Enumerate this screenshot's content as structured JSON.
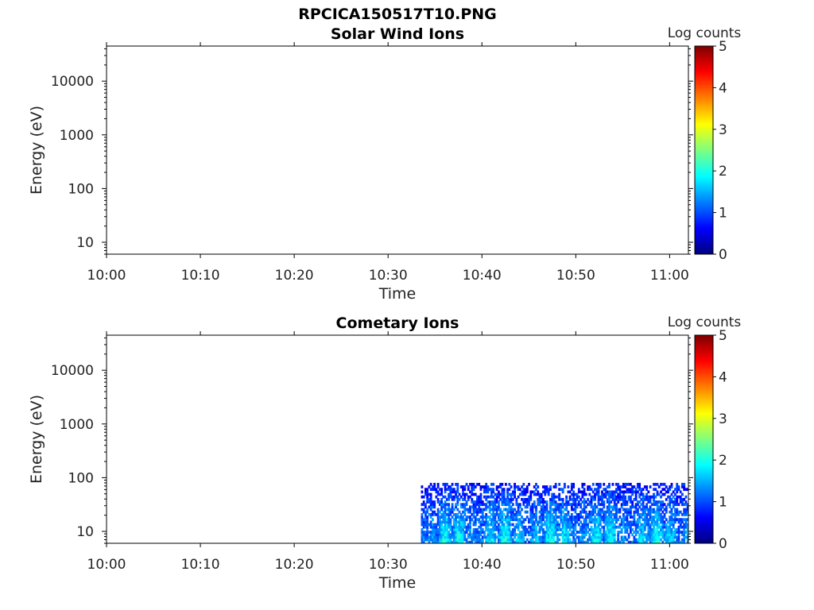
{
  "figure_title": "RPCICA150517T10.PNG",
  "colors": {
    "colormap": [
      "#00007f",
      "#0000ff",
      "#007fff",
      "#00ffff",
      "#7fff7f",
      "#ffff00",
      "#ff7f00",
      "#ff0000",
      "#7f0000"
    ]
  },
  "chart_data": [
    {
      "type": "heatmap",
      "title": "Solar Wind Ions",
      "xlabel": "Time",
      "ylabel": "Energy (eV)",
      "x_ticks": [
        "10:00",
        "10:10",
        "10:20",
        "10:30",
        "10:40",
        "10:50",
        "11:00"
      ],
      "y_ticks": [
        "10",
        "100",
        "1000",
        "10000"
      ],
      "y_scale": "log",
      "ylim": [
        6,
        45000
      ],
      "xlim": [
        "10:00",
        "11:02"
      ],
      "colorbar": {
        "label": "Log counts",
        "ticks": [
          "0",
          "1",
          "2",
          "3",
          "4",
          "5"
        ],
        "range": [
          0,
          5
        ]
      },
      "data_extent": null
    },
    {
      "type": "heatmap",
      "title": "Cometary Ions",
      "xlabel": "Time",
      "ylabel": "Energy (eV)",
      "x_ticks": [
        "10:00",
        "10:10",
        "10:20",
        "10:30",
        "10:40",
        "10:50",
        "11:00"
      ],
      "y_ticks": [
        "10",
        "100",
        "1000",
        "10000"
      ],
      "y_scale": "log",
      "ylim": [
        6,
        45000
      ],
      "xlim": [
        "10:00",
        "11:02"
      ],
      "colorbar": {
        "label": "Log counts",
        "ticks": [
          "0",
          "1",
          "2",
          "3",
          "4",
          "5"
        ],
        "range": [
          0,
          5
        ]
      },
      "data_extent": {
        "x_start": "10:33.5",
        "x_end": "11:02",
        "energy_min": 6,
        "energy_max": 80,
        "log_counts_min": 0,
        "log_counts_max": 2.5
      }
    }
  ]
}
